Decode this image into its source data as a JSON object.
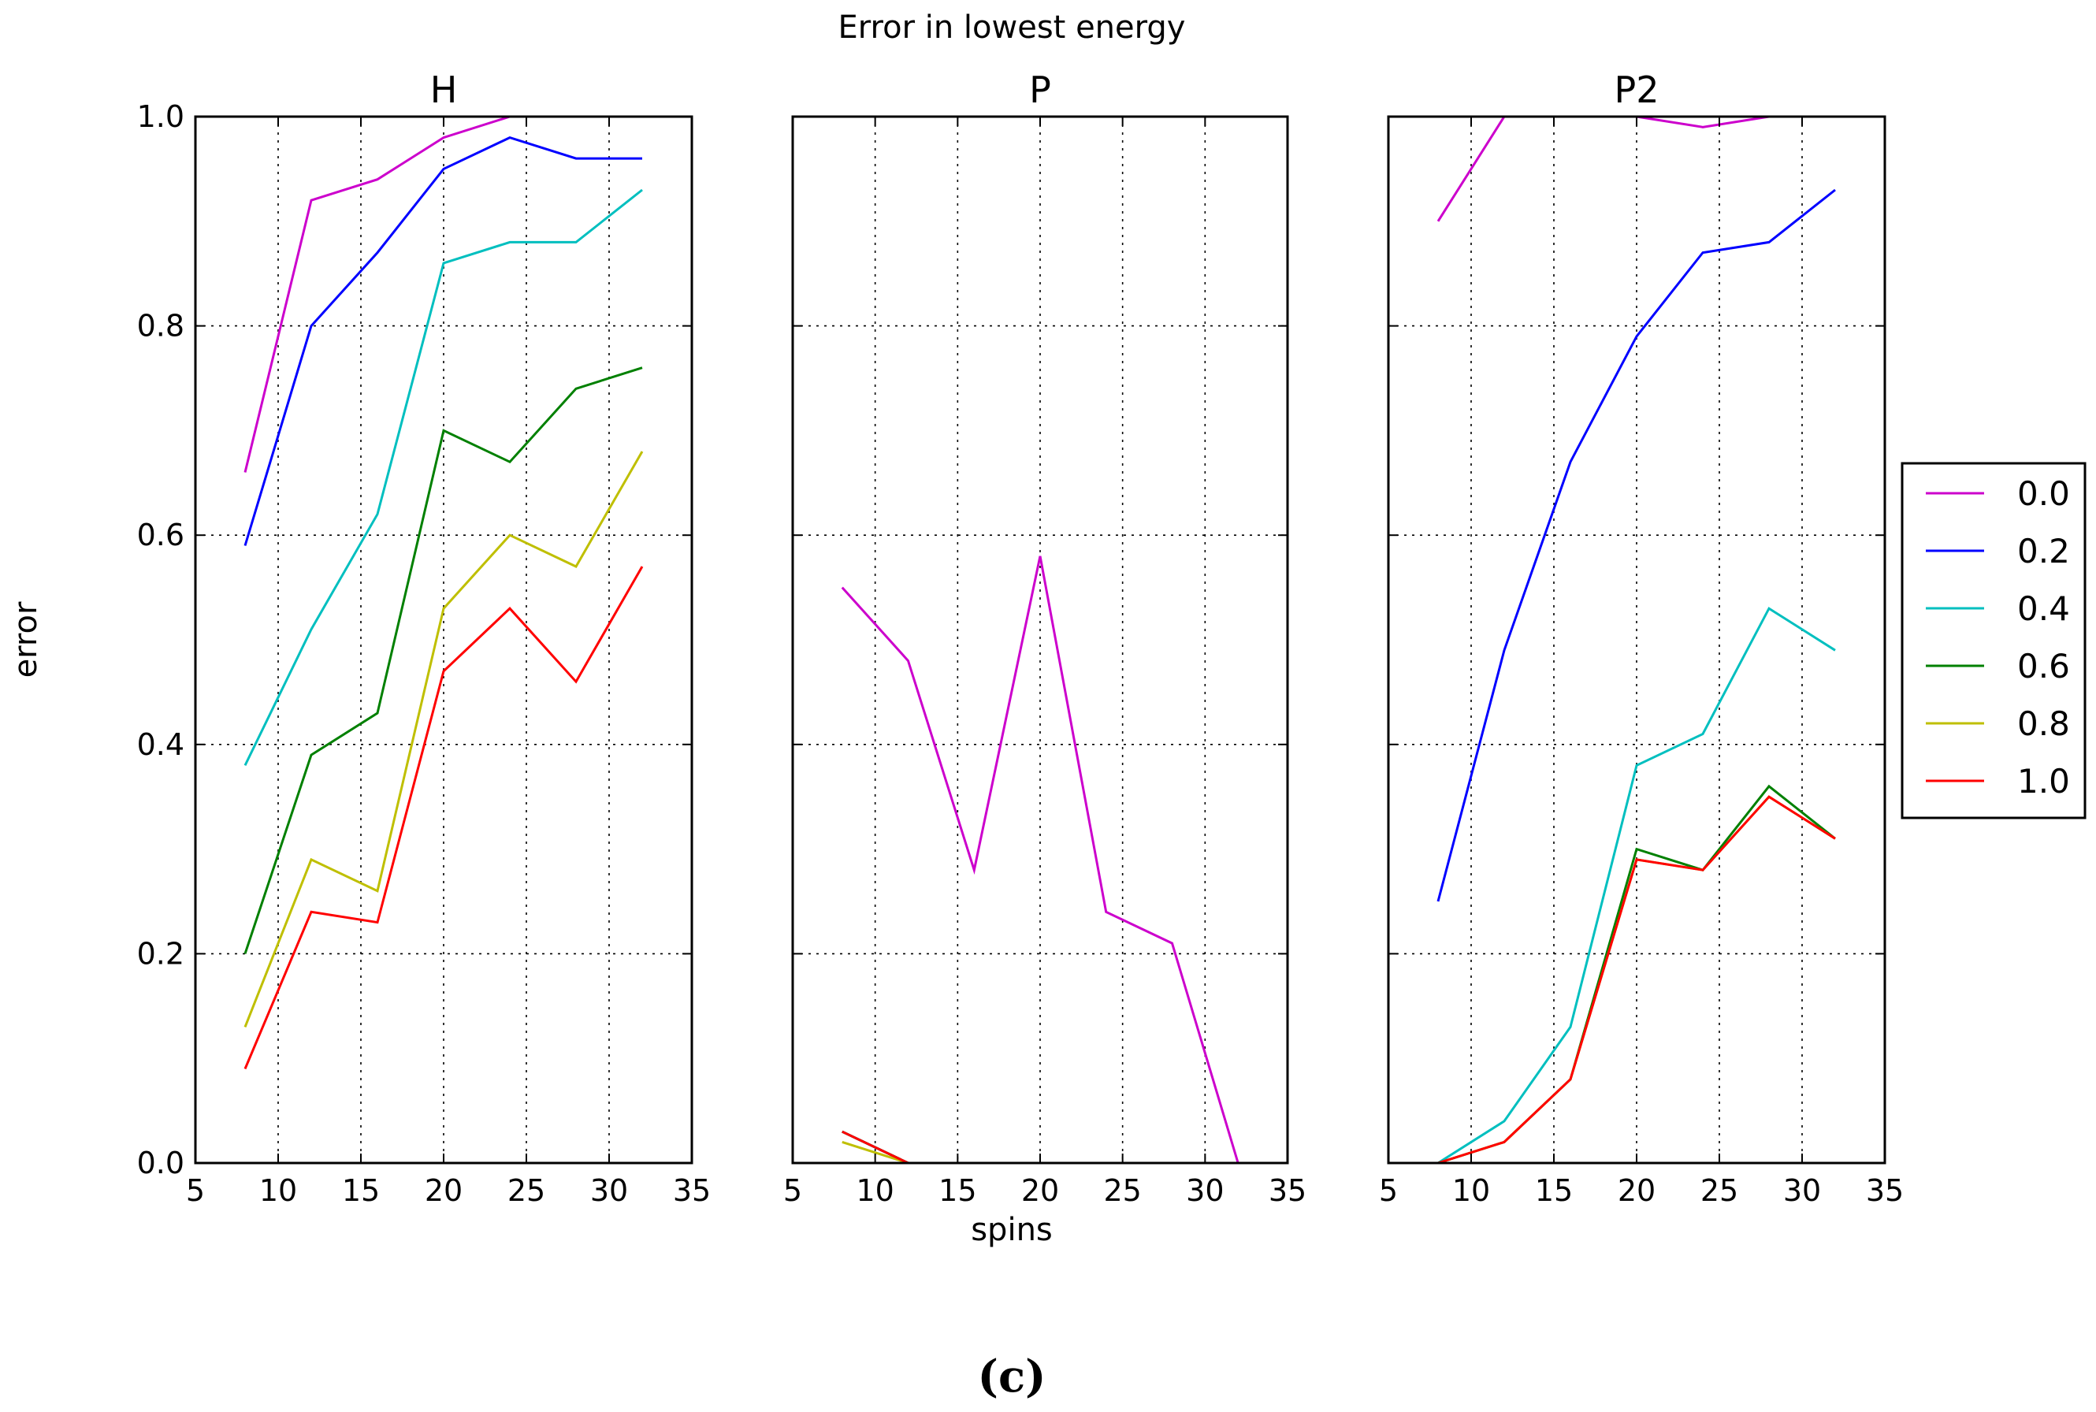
{
  "figure": {
    "suptitle": "Error in lowest energy",
    "xlabel": "spins",
    "ylabel": "error",
    "caption": "(c)"
  },
  "legend": {
    "placement": "center-right",
    "entries": [
      {
        "label": "0.0",
        "color": "#cc00cc"
      },
      {
        "label": "0.2",
        "color": "#0000ff"
      },
      {
        "label": "0.4",
        "color": "#00bfbf"
      },
      {
        "label": "0.6",
        "color": "#008000"
      },
      {
        "label": "0.8",
        "color": "#bfbf00"
      },
      {
        "label": "1.0",
        "color": "#ff0000"
      }
    ]
  },
  "chart_data": [
    {
      "type": "line",
      "title": "H",
      "xlabel": "",
      "ylabel": "error",
      "xlim": [
        5,
        35
      ],
      "ylim": [
        0.0,
        1.0
      ],
      "xticks": [
        "5",
        "10",
        "15",
        "20",
        "25",
        "30",
        "35"
      ],
      "yticks": [
        "0.0",
        "0.2",
        "0.4",
        "0.6",
        "0.8",
        "1.0"
      ],
      "show_yticklabels": true,
      "grid": true,
      "x": [
        8,
        12,
        16,
        20,
        24,
        28,
        32
      ],
      "series": [
        {
          "name": "0.0",
          "values": [
            0.66,
            0.92,
            0.94,
            0.98,
            1.0,
            1.0,
            1.0
          ]
        },
        {
          "name": "0.2",
          "values": [
            0.59,
            0.8,
            0.87,
            0.95,
            0.98,
            0.96,
            0.96
          ]
        },
        {
          "name": "0.4",
          "values": [
            0.38,
            0.51,
            0.62,
            0.86,
            0.88,
            0.88,
            0.93
          ]
        },
        {
          "name": "0.6",
          "values": [
            0.2,
            0.39,
            0.43,
            0.7,
            0.67,
            0.74,
            0.76
          ]
        },
        {
          "name": "0.8",
          "values": [
            0.13,
            0.29,
            0.26,
            0.53,
            0.6,
            0.57,
            0.68
          ]
        },
        {
          "name": "1.0",
          "values": [
            0.09,
            0.24,
            0.23,
            0.47,
            0.53,
            0.46,
            0.57
          ]
        }
      ]
    },
    {
      "type": "line",
      "title": "P",
      "xlabel": "spins",
      "ylabel": "",
      "xlim": [
        5,
        35
      ],
      "ylim": [
        0.0,
        1.0
      ],
      "xticks": [
        "5",
        "10",
        "15",
        "20",
        "25",
        "30",
        "35"
      ],
      "yticks": [
        "0.0",
        "0.2",
        "0.4",
        "0.6",
        "0.8",
        "1.0"
      ],
      "show_yticklabels": false,
      "grid": true,
      "x": [
        8,
        12,
        16,
        20,
        24,
        28,
        32
      ],
      "series": [
        {
          "name": "0.0",
          "values": [
            0.55,
            0.48,
            0.28,
            0.58,
            0.24,
            0.21,
            0.0
          ]
        },
        {
          "name": "0.2",
          "values": [
            0.03,
            0.0,
            0.0,
            0.0,
            0.0,
            0.0,
            0.0
          ]
        },
        {
          "name": "0.4",
          "values": [
            0.03,
            0.0,
            0.0,
            0.0,
            0.0,
            0.0,
            0.0
          ]
        },
        {
          "name": "0.6",
          "values": [
            0.03,
            0.0,
            0.0,
            0.0,
            0.0,
            0.0,
            0.0
          ]
        },
        {
          "name": "0.8",
          "values": [
            0.02,
            0.0,
            0.0,
            0.0,
            0.0,
            0.0,
            0.0
          ]
        },
        {
          "name": "1.0",
          "values": [
            0.03,
            0.0,
            0.0,
            0.0,
            0.0,
            0.0,
            0.0
          ]
        }
      ]
    },
    {
      "type": "line",
      "title": "P2",
      "xlabel": "",
      "ylabel": "",
      "xlim": [
        5,
        35
      ],
      "ylim": [
        0.0,
        1.0
      ],
      "xticks": [
        "5",
        "10",
        "15",
        "20",
        "25",
        "30",
        "35"
      ],
      "yticks": [
        "0.0",
        "0.2",
        "0.4",
        "0.6",
        "0.8",
        "1.0"
      ],
      "show_yticklabels": false,
      "grid": true,
      "x": [
        8,
        12,
        16,
        20,
        24,
        28,
        32
      ],
      "series": [
        {
          "name": "0.0",
          "values": [
            0.9,
            1.0,
            1.0,
            1.0,
            0.99,
            1.0,
            1.0
          ]
        },
        {
          "name": "0.2",
          "values": [
            0.25,
            0.49,
            0.67,
            0.79,
            0.87,
            0.88,
            0.93
          ]
        },
        {
          "name": "0.4",
          "values": [
            0.0,
            0.04,
            0.13,
            0.38,
            0.41,
            0.53,
            0.49
          ]
        },
        {
          "name": "0.6",
          "values": [
            0.0,
            0.02,
            0.08,
            0.3,
            0.28,
            0.36,
            0.31
          ]
        },
        {
          "name": "0.8",
          "values": [
            0.0,
            0.02,
            0.08,
            0.29,
            0.28,
            0.35,
            0.31
          ]
        },
        {
          "name": "1.0",
          "values": [
            0.0,
            0.02,
            0.08,
            0.29,
            0.28,
            0.35,
            0.31
          ]
        }
      ]
    }
  ]
}
